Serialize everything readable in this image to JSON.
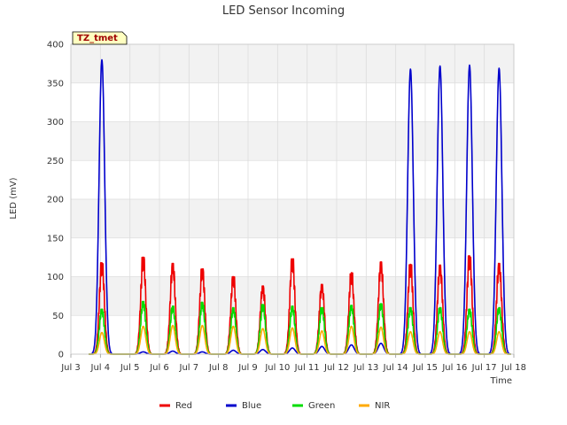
{
  "chart_data": {
    "type": "line",
    "title": "LED Sensor Incoming",
    "xlabel": "Time",
    "ylabel": "LED (mV)",
    "badge": "TZ_tmet",
    "xlim": [
      3,
      18
    ],
    "ylim": [
      0,
      400
    ],
    "x_ticks": [
      {
        "v": 3,
        "label": "Jul 3"
      },
      {
        "v": 4,
        "label": "Jul 4"
      },
      {
        "v": 5,
        "label": "Jul 5"
      },
      {
        "v": 6,
        "label": "Jul 6"
      },
      {
        "v": 7,
        "label": "Jul 7"
      },
      {
        "v": 8,
        "label": "Jul 8"
      },
      {
        "v": 9,
        "label": "Jul 9"
      },
      {
        "v": 10,
        "label": "Jul 10"
      },
      {
        "v": 11,
        "label": "Jul 11"
      },
      {
        "v": 12,
        "label": "Jul 12"
      },
      {
        "v": 13,
        "label": "Jul 13"
      },
      {
        "v": 14,
        "label": "Jul 14"
      },
      {
        "v": 15,
        "label": "Jul 15"
      },
      {
        "v": 16,
        "label": "Jul 16"
      },
      {
        "v": 17,
        "label": "Jul 17"
      },
      {
        "v": 18,
        "label": "Jul 18"
      }
    ],
    "y_ticks": [
      0,
      50,
      100,
      150,
      200,
      250,
      300,
      350,
      400
    ],
    "day_peak_offset": 0.5,
    "series": [
      {
        "name": "Red",
        "color": "#ee0000",
        "peaks": [
          {
            "day": 3.55,
            "value": 118
          },
          {
            "day": 4.95,
            "value": 125
          },
          {
            "day": 5.95,
            "value": 117
          },
          {
            "day": 6.95,
            "value": 110
          },
          {
            "day": 8.0,
            "value": 100
          },
          {
            "day": 9.0,
            "value": 88
          },
          {
            "day": 10.0,
            "value": 123
          },
          {
            "day": 11.0,
            "value": 90
          },
          {
            "day": 12.0,
            "value": 105
          },
          {
            "day": 13.0,
            "value": 119
          },
          {
            "day": 14.0,
            "value": 116
          },
          {
            "day": 15.0,
            "value": 115
          },
          {
            "day": 16.0,
            "value": 127
          },
          {
            "day": 17.0,
            "value": 117
          }
        ]
      },
      {
        "name": "Blue",
        "color": "#0000cc",
        "peaks": [
          {
            "day": 3.55,
            "value": 380
          },
          {
            "day": 4.95,
            "value": 3
          },
          {
            "day": 5.95,
            "value": 4
          },
          {
            "day": 6.95,
            "value": 3
          },
          {
            "day": 8.0,
            "value": 5
          },
          {
            "day": 9.0,
            "value": 6
          },
          {
            "day": 10.0,
            "value": 8
          },
          {
            "day": 11.0,
            "value": 10
          },
          {
            "day": 12.0,
            "value": 12
          },
          {
            "day": 13.0,
            "value": 14
          },
          {
            "day": 14.0,
            "value": 368
          },
          {
            "day": 15.0,
            "value": 372
          },
          {
            "day": 16.0,
            "value": 373
          },
          {
            "day": 17.0,
            "value": 369
          }
        ]
      },
      {
        "name": "Green",
        "color": "#00dd00",
        "peaks": [
          {
            "day": 3.55,
            "value": 58
          },
          {
            "day": 4.95,
            "value": 68
          },
          {
            "day": 5.95,
            "value": 62
          },
          {
            "day": 6.95,
            "value": 67
          },
          {
            "day": 8.0,
            "value": 60
          },
          {
            "day": 9.0,
            "value": 64
          },
          {
            "day": 10.0,
            "value": 62
          },
          {
            "day": 11.0,
            "value": 60
          },
          {
            "day": 12.0,
            "value": 63
          },
          {
            "day": 13.0,
            "value": 65
          },
          {
            "day": 14.0,
            "value": 60
          },
          {
            "day": 15.0,
            "value": 60
          },
          {
            "day": 16.0,
            "value": 58
          },
          {
            "day": 17.0,
            "value": 60
          }
        ]
      },
      {
        "name": "NIR",
        "color": "#ffaa00",
        "peaks": [
          {
            "day": 3.55,
            "value": 28
          },
          {
            "day": 4.95,
            "value": 36
          },
          {
            "day": 5.95,
            "value": 37
          },
          {
            "day": 6.95,
            "value": 37
          },
          {
            "day": 8.0,
            "value": 36
          },
          {
            "day": 9.0,
            "value": 33
          },
          {
            "day": 10.0,
            "value": 34
          },
          {
            "day": 11.0,
            "value": 30
          },
          {
            "day": 12.0,
            "value": 36
          },
          {
            "day": 13.0,
            "value": 35
          },
          {
            "day": 14.0,
            "value": 29
          },
          {
            "day": 15.0,
            "value": 29
          },
          {
            "day": 16.0,
            "value": 29
          },
          {
            "day": 17.0,
            "value": 29
          }
        ]
      }
    ],
    "legend_position": "bottom"
  }
}
